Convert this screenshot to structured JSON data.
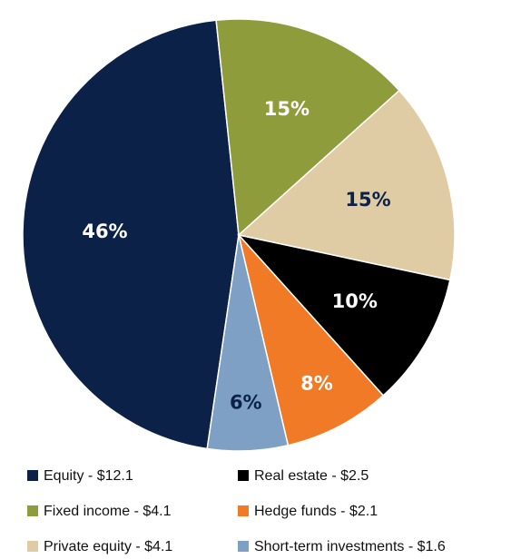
{
  "chart_data": {
    "type": "pie",
    "categories": [
      "Equity - $12.1",
      "Fixed income - $4.1",
      "Private equity - $4.1",
      "Real estate - $2.5",
      "Hedge funds - $2.1",
      "Short-term investments - $1.6"
    ],
    "values": [
      46,
      15,
      15,
      10,
      8,
      6
    ],
    "value_labels": [
      "46%",
      "15%",
      "15%",
      "10%",
      "8%",
      "6%"
    ],
    "colors": [
      "#0c2148",
      "#8f9c3c",
      "#dfcba4",
      "#000000",
      "#f07a26",
      "#7ea0c4"
    ],
    "label_colors": [
      "#ffffff",
      "#ffffff",
      "#0c2148",
      "#ffffff",
      "#ffffff",
      "#0c2148"
    ]
  }
}
